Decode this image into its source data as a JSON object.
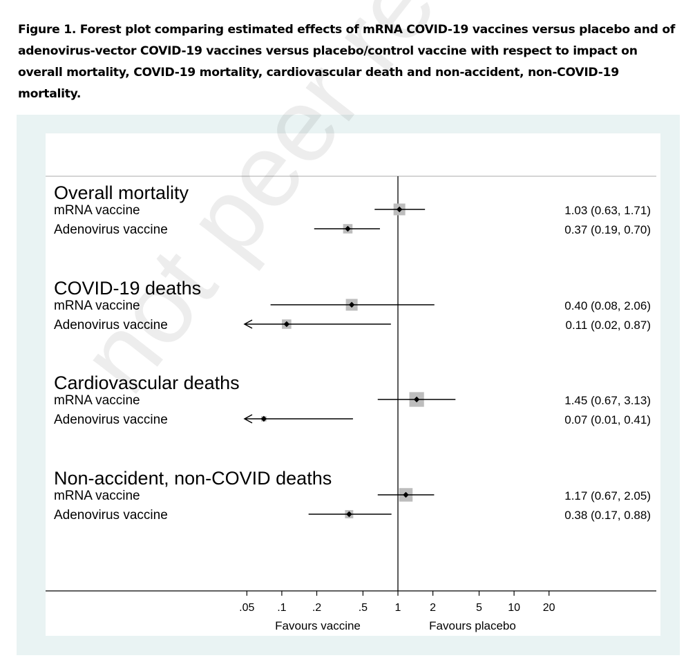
{
  "caption": "Figure 1. Forest plot comparing estimated effects of mRNA COVID-19 vaccines versus placebo and of adenovirus-vector COVID-19 vaccines versus placebo/control vaccine with respect to impact on overall mortality, COVID-19 mortality, cardiovascular death and non-accident, non-COVID-19 mortality.",
  "watermark": "not peer reviewed",
  "chart_data": {
    "type": "forest",
    "x_scale": "log",
    "x_ticks": [
      {
        "value": 0.05,
        "label": ".05"
      },
      {
        "value": 0.1,
        "label": ".1"
      },
      {
        "value": 0.2,
        "label": ".2"
      },
      {
        "value": 0.5,
        "label": ".5"
      },
      {
        "value": 1,
        "label": "1"
      },
      {
        "value": 2,
        "label": "2"
      },
      {
        "value": 5,
        "label": "5"
      },
      {
        "value": 10,
        "label": "10"
      },
      {
        "value": 20,
        "label": "20"
      }
    ],
    "reference_line": 1,
    "left_direction_label": "Favours vaccine",
    "right_direction_label": "Favours placebo",
    "colors": {
      "marker_box": "#bdbdbd",
      "line": "#000000",
      "panel_bg": "#e9f3f3"
    },
    "groups": [
      {
        "title": "Overall mortality",
        "rows": [
          {
            "label": "mRNA vaccine",
            "estimate": 1.03,
            "lower": 0.63,
            "upper": 1.71,
            "ci_text": "1.03 (0.63, 1.71)",
            "weight": 1.0,
            "arrow_left": false
          },
          {
            "label": "Adenovirus vaccine",
            "estimate": 0.37,
            "lower": 0.19,
            "upper": 0.7,
            "ci_text": "0.37 (0.19, 0.70)",
            "weight": 0.8,
            "arrow_left": false
          }
        ]
      },
      {
        "title": "COVID-19 deaths",
        "rows": [
          {
            "label": "mRNA vaccine",
            "estimate": 0.4,
            "lower": 0.08,
            "upper": 2.06,
            "ci_text": "0.40 (0.08, 2.06)",
            "weight": 1.0,
            "arrow_left": false
          },
          {
            "label": "Adenovirus vaccine",
            "estimate": 0.11,
            "lower": 0.02,
            "upper": 0.87,
            "ci_text": "0.11 (0.02, 0.87)",
            "weight": 0.8,
            "arrow_left": true
          }
        ]
      },
      {
        "title": "Cardiovascular deaths",
        "rows": [
          {
            "label": "mRNA vaccine",
            "estimate": 1.45,
            "lower": 0.67,
            "upper": 3.13,
            "ci_text": "1.45 (0.67, 3.13)",
            "weight": 1.25,
            "arrow_left": false
          },
          {
            "label": "Adenovirus vaccine",
            "estimate": 0.07,
            "lower": 0.01,
            "upper": 0.41,
            "ci_text": "0.07 (0.01, 0.41)",
            "weight": 0.45,
            "arrow_left": true
          }
        ]
      },
      {
        "title": "Non-accident, non-COVID deaths",
        "rows": [
          {
            "label": "mRNA vaccine",
            "estimate": 1.17,
            "lower": 0.67,
            "upper": 2.05,
            "ci_text": "1.17 (0.67, 2.05)",
            "weight": 1.15,
            "arrow_left": false
          },
          {
            "label": "Adenovirus vaccine",
            "estimate": 0.38,
            "lower": 0.17,
            "upper": 0.88,
            "ci_text": "0.38 (0.17, 0.88)",
            "weight": 0.7,
            "arrow_left": false
          }
        ]
      }
    ]
  }
}
